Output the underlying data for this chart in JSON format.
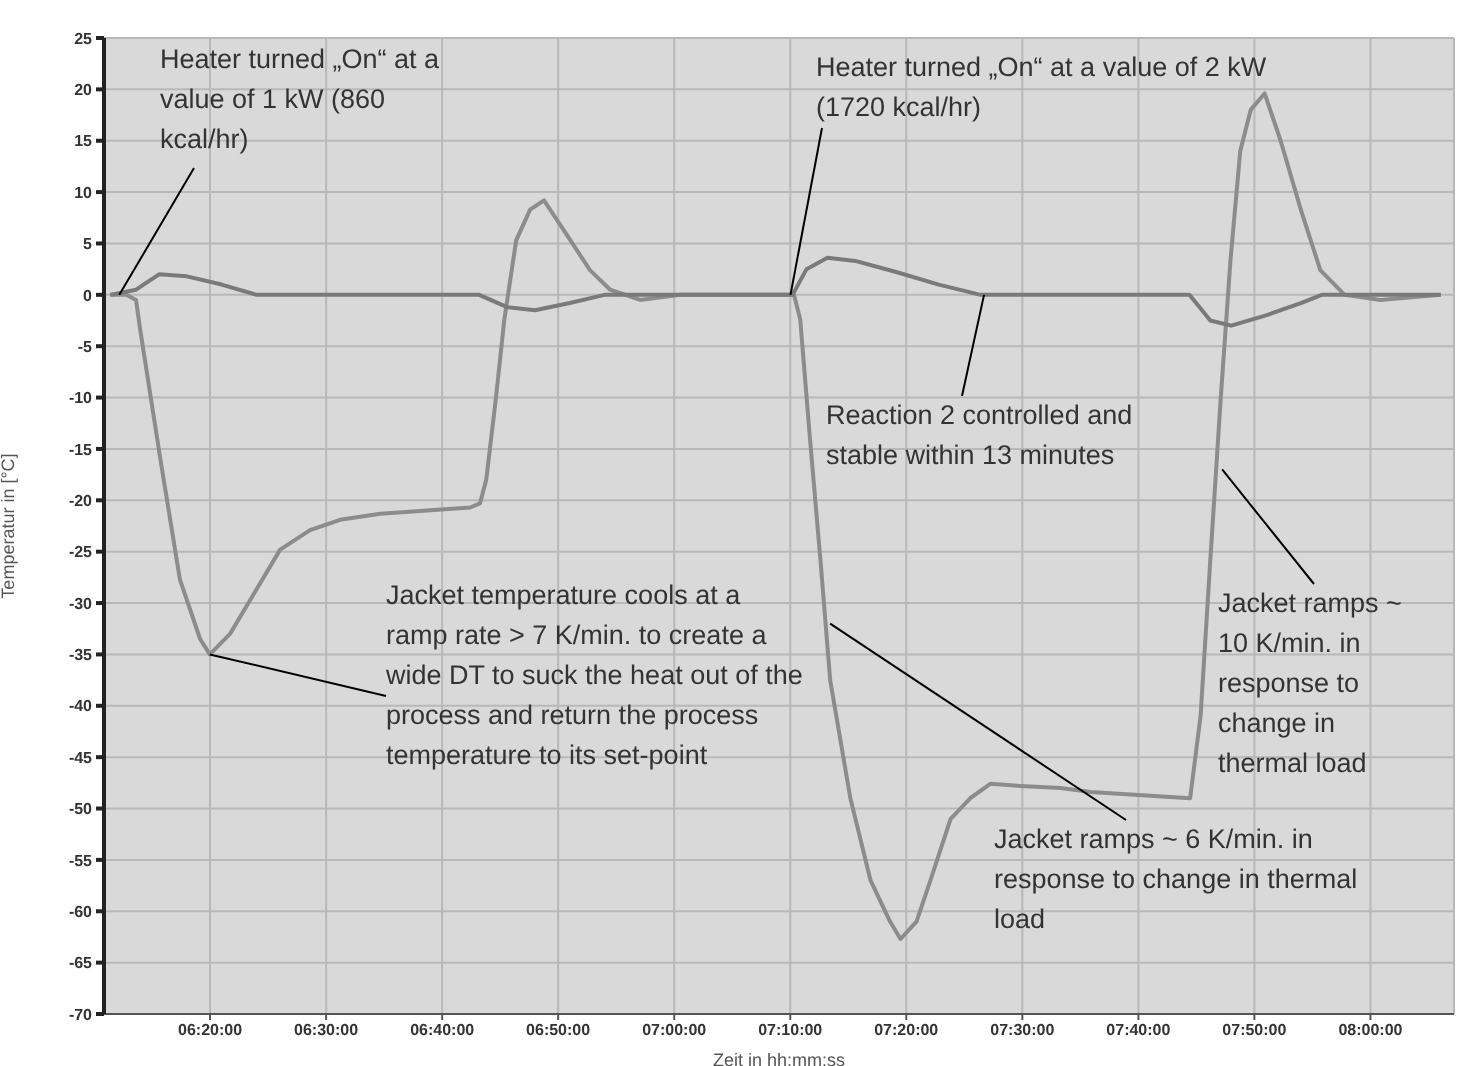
{
  "chart_data": {
    "type": "line",
    "xlabel": "Zeit in hh:mm:ss",
    "ylabel": "Temperatur in [°C]",
    "xlim": [
      6.181,
      8.12
    ],
    "xticks": [
      {
        "value": 6.3333,
        "label": "06:20:00"
      },
      {
        "value": 6.5,
        "label": "06:30:00"
      },
      {
        "value": 6.6667,
        "label": "06:40:00"
      },
      {
        "value": 6.8333,
        "label": "06:50:00"
      },
      {
        "value": 7,
        "label": "07:00:00"
      },
      {
        "value": 7.1667,
        "label": "07:10:00"
      },
      {
        "value": 7.3333,
        "label": "07:20:00"
      },
      {
        "value": 7.5,
        "label": "07:30:00"
      },
      {
        "value": 7.6667,
        "label": "07:40:00"
      },
      {
        "value": 7.8333,
        "label": "07:50:00"
      },
      {
        "value": 8,
        "label": "08:00:00"
      }
    ],
    "ylim": [
      -70,
      25
    ],
    "yticks": [
      25,
      20,
      15,
      10,
      5,
      0,
      -5,
      -10,
      -15,
      -20,
      -25,
      -30,
      -35,
      -40,
      -45,
      -50,
      -55,
      -60,
      -65,
      -70
    ],
    "grid": true,
    "legend": false,
    "marker": "none",
    "line_style": "solid",
    "series": [
      {
        "color": "#8c8c8c",
        "x": [
          6.19,
          6.213,
          6.227,
          6.233,
          6.262,
          6.29,
          6.319,
          6.333,
          6.362,
          6.391,
          6.434,
          6.477,
          6.52,
          6.578,
          6.707,
          6.721,
          6.73,
          6.744,
          6.756,
          6.773,
          6.793,
          6.813,
          6.851,
          6.879,
          6.908,
          6.951,
          7.009,
          7.152,
          7.172,
          7.181,
          7.195,
          7.21,
          7.224,
          7.253,
          7.282,
          7.31,
          7.325,
          7.348,
          7.368,
          7.397,
          7.425,
          7.454,
          7.497,
          7.555,
          7.598,
          7.741,
          7.756,
          7.77,
          7.785,
          7.799,
          7.813,
          7.828,
          7.848,
          7.871,
          7.9,
          7.928,
          7.963,
          8.014,
          8.101
        ],
        "values": [
          0,
          0,
          -0.5,
          -3.4,
          -16,
          -27.7,
          -33.5,
          -35,
          -33,
          -29.7,
          -24.8,
          -22.9,
          -21.9,
          -21.3,
          -20.7,
          -20.3,
          -18,
          -10,
          -2.4,
          5.3,
          8.3,
          9.2,
          5.3,
          2.4,
          0.5,
          -0.5,
          0,
          0,
          0,
          -2.4,
          -14,
          -25.8,
          -37.5,
          -49,
          -57,
          -61,
          -62.7,
          -61,
          -57,
          -51,
          -49,
          -47.6,
          -47.8,
          -48,
          -48.4,
          -49,
          -41,
          -25.8,
          -10,
          3.4,
          14,
          18,
          19.6,
          15,
          8.3,
          2.4,
          0,
          -0.5,
          0
        ]
      },
      {
        "color": "#7a7a7a",
        "x": [
          6.19,
          6.227,
          6.26,
          6.3,
          6.35,
          6.4,
          6.72,
          6.76,
          6.8,
          6.85,
          6.9,
          7.17,
          7.19,
          7.22,
          7.26,
          7.32,
          7.38,
          7.44,
          7.74,
          7.77,
          7.8,
          7.85,
          7.9,
          7.93,
          8.101
        ],
        "values": [
          0,
          0.5,
          2,
          1.8,
          1,
          0,
          0,
          -1.2,
          -1.5,
          -0.8,
          0,
          0,
          2.5,
          3.6,
          3.3,
          2.2,
          1,
          0,
          0,
          -2.5,
          -3,
          -2,
          -0.8,
          0,
          0
        ]
      }
    ],
    "annotations": [
      {
        "text": "Heater turned „On“ at a value of 1 kW (860 kcal/hr)",
        "x": 6.203,
        "y": 0
      },
      {
        "text": "Heater turned „On“ at a value of 2 kW (1720 kcal/hr)",
        "x": 7.167,
        "y": 0
      },
      {
        "text": "Reaction 2 controlled and stable within 13 minutes",
        "x": 7.445,
        "y": 0
      },
      {
        "text": "Jacket temperature cools at a ramp rate > 7 K/min. to create a wide DT to suck the heat out of the process and return the process temperature to its set-point",
        "x": 6.333,
        "y": -35
      },
      {
        "text": "Jacket ramps ~ 6 K/min. in response to change in thermal load",
        "x": 7.224,
        "y": -32
      },
      {
        "text": "Jacket ramps ~ 10 K/min. in response to change in thermal load",
        "x": 7.787,
        "y": -17
      }
    ]
  }
}
